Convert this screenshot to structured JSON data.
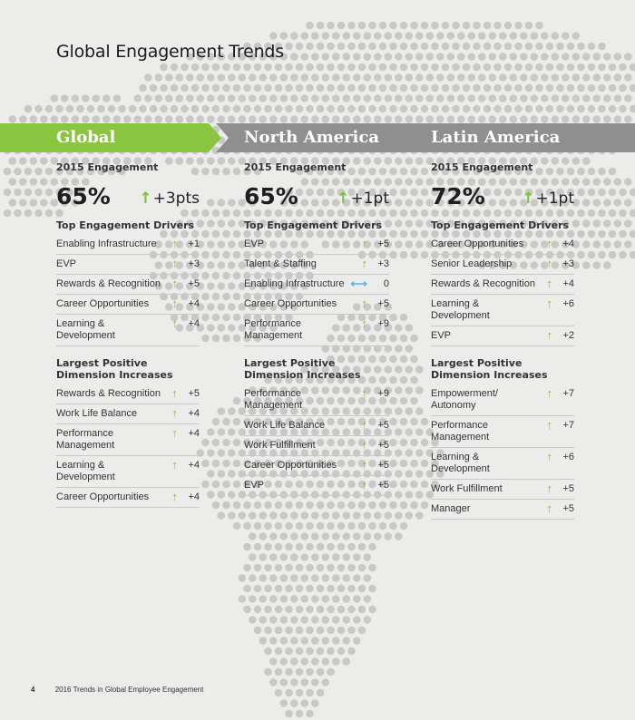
{
  "page": {
    "title": "Global Engagement Trends",
    "footer_page": "4",
    "footer_text": "2016 Trends in Global Employee Engagement"
  },
  "colors": {
    "green": "#8ac540",
    "gray_banner": "#8f8f8f",
    "arrow_up": "#7dc13b",
    "arrow_flat": "#57b7e2",
    "background": "#ececeb",
    "map_dot": "#c8c8c7"
  },
  "regions": [
    {
      "name": "Global",
      "engagement_label": "2015 Engagement",
      "score": "65%",
      "change": "+3pts",
      "drivers_heading": "Top Engagement Drivers",
      "drivers": [
        {
          "label": [
            "Enabling Infrastructure"
          ],
          "trend": "up",
          "value": "+1"
        },
        {
          "label": [
            "EVP"
          ],
          "trend": "up",
          "value": "+3"
        },
        {
          "label": [
            "Rewards & Recognition"
          ],
          "trend": "up",
          "value": "+5"
        },
        {
          "label": [
            "Career Opportunities"
          ],
          "trend": "up",
          "value": "+4"
        },
        {
          "label": [
            "Learning &",
            "Development"
          ],
          "trend": "up",
          "value": "+4"
        }
      ],
      "increases_heading": [
        "Largest Positive",
        "Dimension Increases"
      ],
      "increases": [
        {
          "label": [
            "Rewards & Recognition"
          ],
          "trend": "up",
          "value": "+5"
        },
        {
          "label": [
            "Work Life Balance"
          ],
          "trend": "up",
          "value": "+4"
        },
        {
          "label": [
            "Performance",
            "Management"
          ],
          "trend": "up",
          "value": "+4"
        },
        {
          "label": [
            "Learning &",
            "Development"
          ],
          "trend": "up",
          "value": "+4"
        },
        {
          "label": [
            "Career Opportunities"
          ],
          "trend": "up",
          "value": "+4"
        }
      ]
    },
    {
      "name": "North America",
      "engagement_label": "2015 Engagement",
      "score": "65%",
      "change": "+1pt",
      "drivers_heading": "Top Engagement Drivers",
      "drivers": [
        {
          "label": [
            "EVP"
          ],
          "trend": "up",
          "value": "+5"
        },
        {
          "label": [
            "Talent & Staffing"
          ],
          "trend": "up",
          "value": "+3"
        },
        {
          "label": [
            "Enabling Infrastructure"
          ],
          "trend": "flat",
          "value": "0"
        },
        {
          "label": [
            "Career Opportunities"
          ],
          "trend": "up",
          "value": "+5"
        },
        {
          "label": [
            "Performance",
            "Management"
          ],
          "trend": "up",
          "value": "+9"
        }
      ],
      "increases_heading": [
        "Largest Positive",
        "Dimension Increases"
      ],
      "increases": [
        {
          "label": [
            "Performance",
            "Management"
          ],
          "trend": "up",
          "value": "+9"
        },
        {
          "label": [
            "Work Life Balance"
          ],
          "trend": "up",
          "value": "+5"
        },
        {
          "label": [
            "Work Fulfillment"
          ],
          "trend": "up",
          "value": "+5"
        },
        {
          "label": [
            "Career Opportunities"
          ],
          "trend": "up",
          "value": "+5"
        },
        {
          "label": [
            "EVP"
          ],
          "trend": "up",
          "value": "+5"
        }
      ]
    },
    {
      "name": "Latin America",
      "engagement_label": "2015 Engagement",
      "score": "72%",
      "change": "+1pt",
      "drivers_heading": "Top Engagement Drivers",
      "drivers": [
        {
          "label": [
            "Career Opportunities"
          ],
          "trend": "up",
          "value": "+4"
        },
        {
          "label": [
            "Senior Leadership"
          ],
          "trend": "up",
          "value": "+3"
        },
        {
          "label": [
            "Rewards & Recognition"
          ],
          "trend": "up",
          "value": "+4"
        },
        {
          "label": [
            "Learning &",
            "Development"
          ],
          "trend": "up",
          "value": "+6"
        },
        {
          "label": [
            "EVP"
          ],
          "trend": "up",
          "value": "+2"
        }
      ],
      "increases_heading": [
        "Largest Positive",
        "Dimension Increases"
      ],
      "increases": [
        {
          "label": [
            "Empowerment/",
            "Autonomy"
          ],
          "trend": "up",
          "value": "+7"
        },
        {
          "label": [
            "Performance",
            "Management"
          ],
          "trend": "up",
          "value": "+7"
        },
        {
          "label": [
            "Learning &",
            "Development"
          ],
          "trend": "up",
          "value": "+6"
        },
        {
          "label": [
            "Work Fulfillment"
          ],
          "trend": "up",
          "value": "+5"
        },
        {
          "label": [
            "Manager"
          ],
          "trend": "up",
          "value": "+5"
        }
      ]
    }
  ]
}
